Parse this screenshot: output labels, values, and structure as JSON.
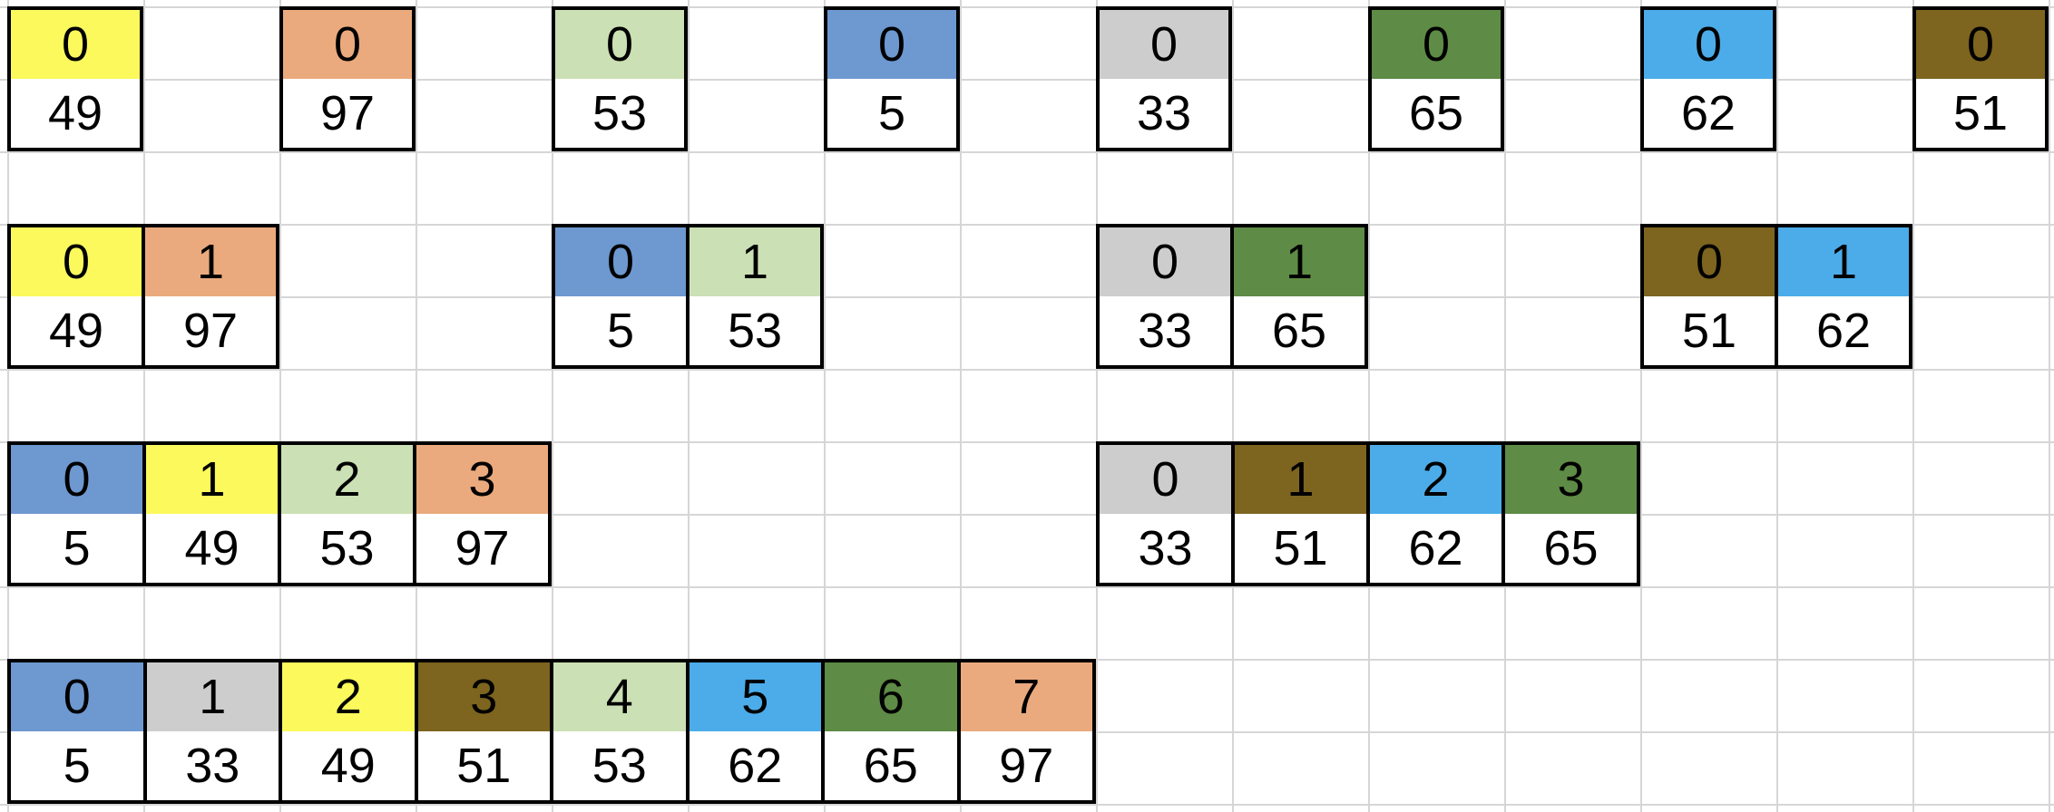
{
  "grid": {
    "background": "#FFFFFF",
    "gridline_color": "#D6D6D6",
    "block_border_color": "#000000",
    "text_color": "#000000"
  },
  "palette": {
    "yellow": "#FBF95C",
    "orange": "#EAAA7D",
    "light_green": "#CBE0B4",
    "blue": "#6D98D0",
    "gray": "#CDCDCD",
    "dark_green": "#5E8B45",
    "sky_blue": "#4BACE9",
    "brown": "#7D641F"
  },
  "merge_sort": {
    "levels": [
      {
        "blocks": [
          {
            "col": 0,
            "cells": [
              {
                "index": 0,
                "value": 49,
                "color": "yellow"
              }
            ]
          },
          {
            "col": 2,
            "cells": [
              {
                "index": 0,
                "value": 97,
                "color": "orange"
              }
            ]
          },
          {
            "col": 4,
            "cells": [
              {
                "index": 0,
                "value": 53,
                "color": "light_green"
              }
            ]
          },
          {
            "col": 6,
            "cells": [
              {
                "index": 0,
                "value": 5,
                "color": "blue"
              }
            ]
          },
          {
            "col": 8,
            "cells": [
              {
                "index": 0,
                "value": 33,
                "color": "gray"
              }
            ]
          },
          {
            "col": 10,
            "cells": [
              {
                "index": 0,
                "value": 65,
                "color": "dark_green"
              }
            ]
          },
          {
            "col": 12,
            "cells": [
              {
                "index": 0,
                "value": 62,
                "color": "sky_blue"
              }
            ]
          },
          {
            "col": 14,
            "cells": [
              {
                "index": 0,
                "value": 51,
                "color": "brown"
              }
            ]
          }
        ]
      },
      {
        "blocks": [
          {
            "col": 0,
            "cells": [
              {
                "index": 0,
                "value": 49,
                "color": "yellow"
              },
              {
                "index": 1,
                "value": 97,
                "color": "orange"
              }
            ]
          },
          {
            "col": 4,
            "cells": [
              {
                "index": 0,
                "value": 5,
                "color": "blue"
              },
              {
                "index": 1,
                "value": 53,
                "color": "light_green"
              }
            ]
          },
          {
            "col": 8,
            "cells": [
              {
                "index": 0,
                "value": 33,
                "color": "gray"
              },
              {
                "index": 1,
                "value": 65,
                "color": "dark_green"
              }
            ]
          },
          {
            "col": 12,
            "cells": [
              {
                "index": 0,
                "value": 51,
                "color": "brown"
              },
              {
                "index": 1,
                "value": 62,
                "color": "sky_blue"
              }
            ]
          }
        ]
      },
      {
        "blocks": [
          {
            "col": 0,
            "cells": [
              {
                "index": 0,
                "value": 5,
                "color": "blue"
              },
              {
                "index": 1,
                "value": 49,
                "color": "yellow"
              },
              {
                "index": 2,
                "value": 53,
                "color": "light_green"
              },
              {
                "index": 3,
                "value": 97,
                "color": "orange"
              }
            ]
          },
          {
            "col": 8,
            "cells": [
              {
                "index": 0,
                "value": 33,
                "color": "gray"
              },
              {
                "index": 1,
                "value": 51,
                "color": "brown"
              },
              {
                "index": 2,
                "value": 62,
                "color": "sky_blue"
              },
              {
                "index": 3,
                "value": 65,
                "color": "dark_green"
              }
            ]
          }
        ]
      },
      {
        "blocks": [
          {
            "col": 0,
            "cells": [
              {
                "index": 0,
                "value": 5,
                "color": "blue"
              },
              {
                "index": 1,
                "value": 33,
                "color": "gray"
              },
              {
                "index": 2,
                "value": 49,
                "color": "yellow"
              },
              {
                "index": 3,
                "value": 51,
                "color": "brown"
              },
              {
                "index": 4,
                "value": 53,
                "color": "light_green"
              },
              {
                "index": 5,
                "value": 62,
                "color": "sky_blue"
              },
              {
                "index": 6,
                "value": 65,
                "color": "dark_green"
              },
              {
                "index": 7,
                "value": 97,
                "color": "orange"
              }
            ]
          }
        ]
      }
    ]
  }
}
